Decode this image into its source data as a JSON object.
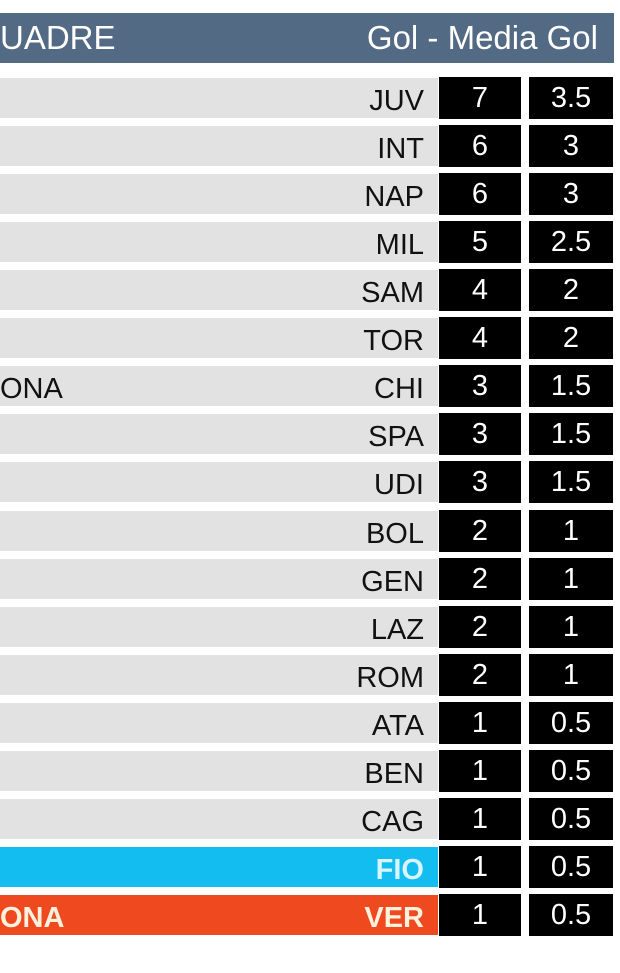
{
  "header": {
    "left_title": "UADRE",
    "right_title": "Gol - Media Gol",
    "color": "#536a84"
  },
  "rows": [
    {
      "name": "",
      "code": "JUV",
      "gol": "7",
      "media": "3.5"
    },
    {
      "name": "",
      "code": "INT",
      "gol": "6",
      "media": "3"
    },
    {
      "name": "",
      "code": "NAP",
      "gol": "6",
      "media": "3"
    },
    {
      "name": "",
      "code": "MIL",
      "gol": "5",
      "media": "2.5"
    },
    {
      "name": "",
      "code": "SAM",
      "gol": "4",
      "media": "2"
    },
    {
      "name": "",
      "code": "TOR",
      "gol": "4",
      "media": "2"
    },
    {
      "name": "ONA",
      "code": "CHI",
      "gol": "3",
      "media": "1.5"
    },
    {
      "name": "",
      "code": "SPA",
      "gol": "3",
      "media": "1.5"
    },
    {
      "name": "",
      "code": "UDI",
      "gol": "3",
      "media": "1.5"
    },
    {
      "name": "",
      "code": "BOL",
      "gol": "2",
      "media": "1"
    },
    {
      "name": "",
      "code": "GEN",
      "gol": "2",
      "media": "1"
    },
    {
      "name": "",
      "code": "LAZ",
      "gol": "2",
      "media": "1"
    },
    {
      "name": "",
      "code": "ROM",
      "gol": "2",
      "media": "1"
    },
    {
      "name": "",
      "code": "ATA",
      "gol": "1",
      "media": "0.5"
    },
    {
      "name": "",
      "code": "BEN",
      "gol": "1",
      "media": "0.5"
    },
    {
      "name": "",
      "code": "CAG",
      "gol": "1",
      "media": "0.5"
    },
    {
      "name": "",
      "code": "FIO",
      "gol": "1",
      "media": "0.5",
      "highlight": "#14bdf0",
      "text_color": "#d8f4ff"
    },
    {
      "name": "ONA",
      "code": "VER",
      "gol": "1",
      "media": "0.5",
      "highlight": "#ef4a1f",
      "text_color": "#fff1dc"
    }
  ]
}
